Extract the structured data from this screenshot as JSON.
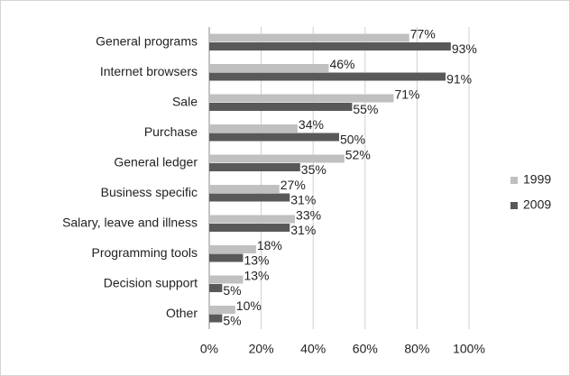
{
  "chart_data": {
    "type": "bar",
    "orientation": "horizontal",
    "categories": [
      "General programs",
      "Internet browsers",
      "Sale",
      "Purchase",
      "General ledger",
      "Business specific",
      "Salary, leave and illness",
      "Programming tools",
      "Decision support",
      "Other"
    ],
    "series": [
      {
        "name": "1999",
        "color": "#c0c0c0",
        "values": [
          77,
          46,
          71,
          34,
          52,
          27,
          33,
          18,
          13,
          10
        ],
        "value_labels": [
          "77%",
          "46%",
          "71%",
          "34%",
          "52%",
          "27%",
          "33%",
          "18%",
          "13%",
          "10%"
        ]
      },
      {
        "name": "2009",
        "color": "#595959",
        "values": [
          93,
          91,
          55,
          50,
          35,
          31,
          31,
          13,
          5,
          5
        ],
        "value_labels": [
          "93%",
          "91%",
          "55%",
          "50%",
          "35%",
          "31%",
          "31%",
          "13%",
          "5%",
          "5%"
        ]
      }
    ],
    "xlim": [
      0,
      100
    ],
    "xticks": [
      {
        "value": 0,
        "label": "0%"
      },
      {
        "value": 20,
        "label": "20%"
      },
      {
        "value": 40,
        "label": "40%"
      },
      {
        "value": 60,
        "label": "60%"
      },
      {
        "value": 80,
        "label": "80%"
      },
      {
        "value": 100,
        "label": "100%"
      }
    ],
    "grid": true,
    "legend": "right"
  }
}
